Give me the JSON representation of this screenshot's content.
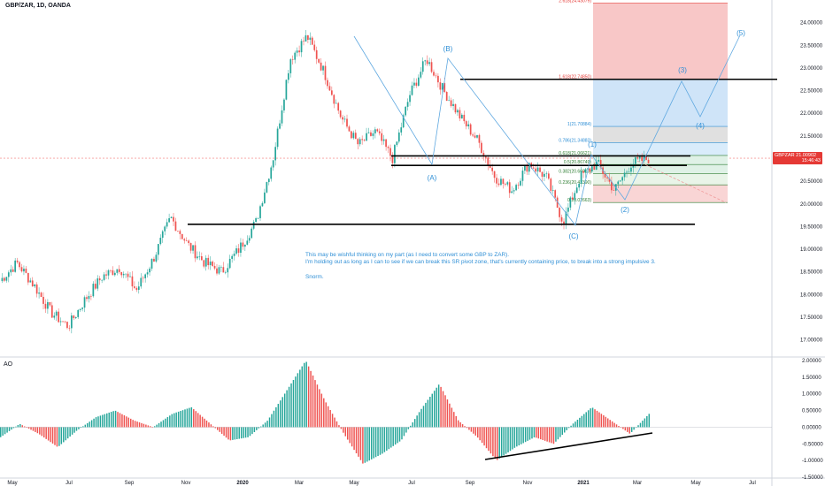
{
  "header": {
    "symbol": "GBP/ZAR, 1D, OANDA"
  },
  "indicator": {
    "label": "AO"
  },
  "note": {
    "lines": [
      "This may be wishful thinking on my part (as I need to convert some GBP to ZAR).",
      "I'm holding out as long as I can to see if we can break this SR pivot zone, that's currently containing price, to break into a strong impulsive 3.",
      "",
      "Snorm."
    ]
  },
  "price_tag": {
    "value": "21.00902",
    "time": "15:46:43"
  },
  "colors": {
    "up": "#26a69a",
    "down": "#ef5350",
    "wave": "#2f8fd6",
    "price_line": "#ef5350"
  },
  "chart_data": [
    {
      "type": "candlestick",
      "symbol": "GBP/ZAR",
      "interval": "1D",
      "ylim": [
        16.7,
        24.5
      ],
      "y_ticks": [
        "24.50000",
        "24.00000",
        "23.50000",
        "23.00000",
        "22.50000",
        "22.00000",
        "21.50000",
        "21.00000",
        "20.50000",
        "20.00000",
        "19.50000",
        "19.00000",
        "18.50000",
        "18.00000",
        "17.50000",
        "17.00000"
      ],
      "x_ticks": [
        "May",
        "Jul",
        "Sep",
        "Nov",
        "2020",
        "Mar",
        "May",
        "Jul",
        "Sep",
        "Nov",
        "2021",
        "Mar",
        "May",
        "Jul"
      ],
      "approx_closes": [
        18.3,
        18.7,
        18.2,
        17.6,
        17.3,
        17.9,
        18.4,
        18.6,
        18.1,
        18.8,
        19.7,
        19.1,
        18.7,
        18.5,
        19.0,
        19.6,
        21.0,
        23.2,
        23.7,
        22.9,
        21.9,
        21.3,
        21.6,
        21.0,
        22.4,
        23.2,
        22.5,
        21.9,
        21.4,
        20.6,
        20.3,
        20.9,
        20.6,
        19.6,
        20.6,
        20.9,
        20.3,
        20.9,
        21.0
      ],
      "horizontal_levels": [
        22.75,
        21.06,
        20.85,
        19.55
      ],
      "fib_levels": [
        {
          "label": "2.618(24.43079)",
          "value": 24.43
        },
        {
          "label": "1.618(22.74850)",
          "value": 22.75
        },
        {
          "label": "1(21.70884)",
          "value": 21.71
        },
        {
          "label": "0.786(21.34883)",
          "value": 21.35
        },
        {
          "label": "0.618(21.06621)",
          "value": 21.07
        },
        {
          "label": "0.5(20.86749)",
          "value": 20.87
        },
        {
          "label": "0.382(20.66919)",
          "value": 20.67
        },
        {
          "label": "0.236(20.42390)",
          "value": 20.42
        },
        {
          "label": "0(20.02663)",
          "value": 20.03
        }
      ],
      "wave_labels": [
        "(A)",
        "(B)",
        "(C)",
        "(1)",
        "(2)",
        "(3)",
        "(4)",
        "(5)"
      ],
      "last_price": 21.00902
    },
    {
      "type": "bar",
      "name": "AO",
      "ylim": [
        -1.5,
        2.0
      ],
      "y_ticks": [
        "2.00000",
        "1.50000",
        "1.00000",
        "0.50000",
        "0.00000",
        "-0.50000",
        "-1.00000",
        "-1.50000"
      ],
      "approx_values": [
        -0.3,
        0.1,
        -0.2,
        -0.6,
        -0.1,
        0.3,
        0.5,
        0.2,
        0.0,
        0.4,
        0.6,
        0.1,
        -0.4,
        -0.3,
        0.2,
        1.1,
        2.0,
        0.8,
        -0.2,
        -1.1,
        -0.8,
        -0.4,
        0.5,
        1.3,
        0.2,
        -0.3,
        -1.0,
        -0.6,
        -0.3,
        -0.5,
        0.1,
        0.6,
        0.2,
        -0.2,
        0.4
      ]
    }
  ]
}
